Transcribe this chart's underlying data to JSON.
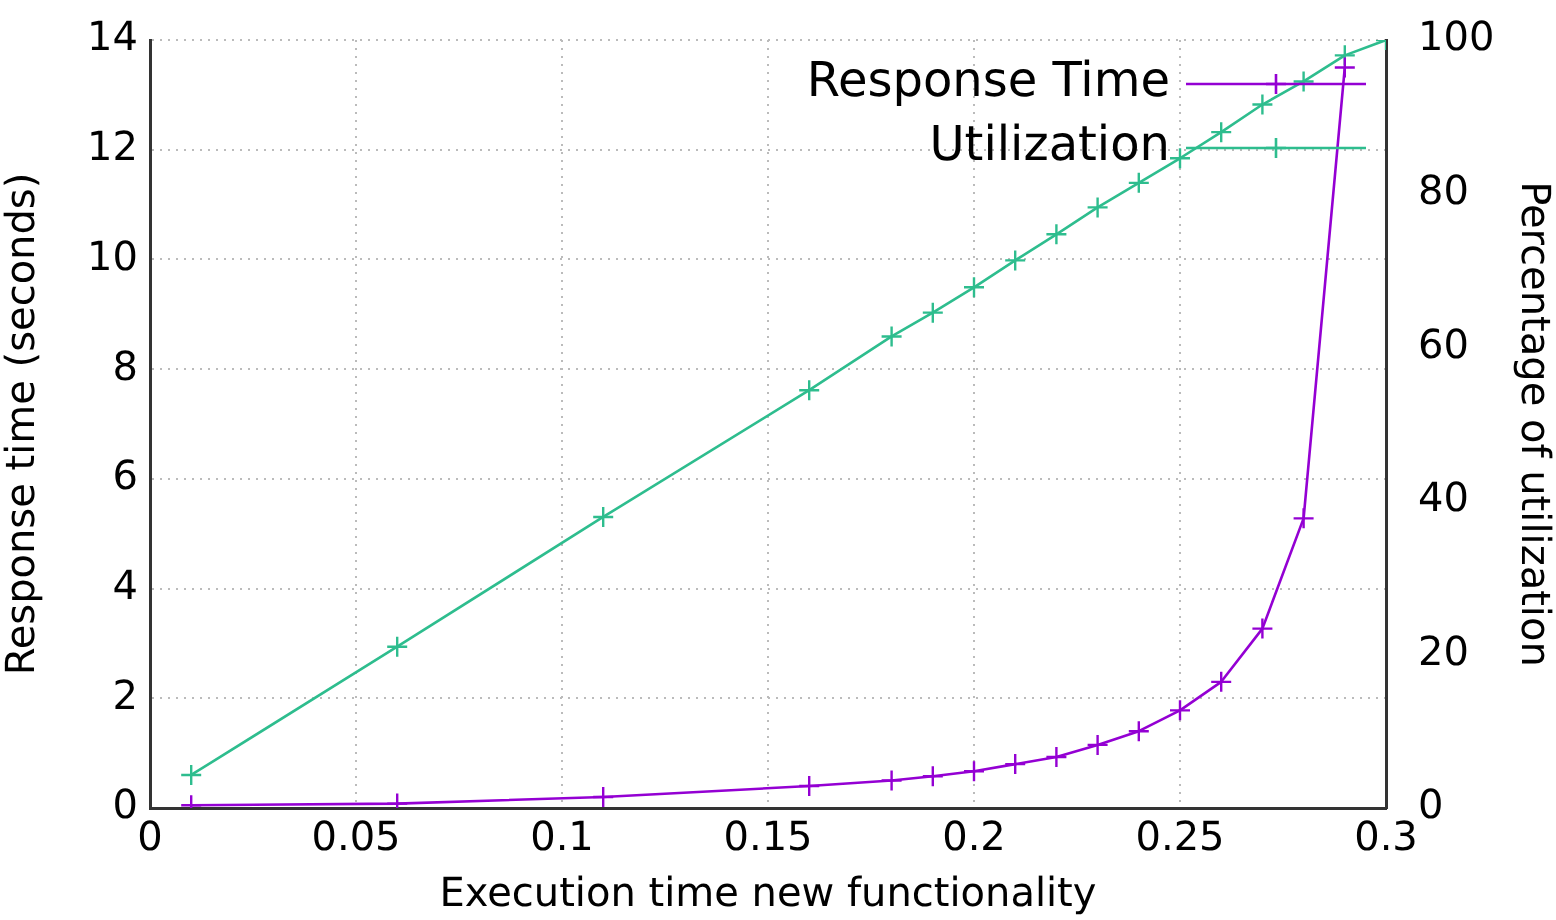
{
  "chart_data": {
    "type": "line",
    "xlabel": "Execution time new functionality",
    "ylabel": "Response time (seconds)",
    "y2label": "Percentage of utilization",
    "xlim": [
      0,
      0.3
    ],
    "xticks": [
      0,
      0.05,
      0.1,
      0.15,
      0.2,
      0.25,
      0.3
    ],
    "ylim": [
      0,
      14
    ],
    "yticks": [
      0,
      2,
      4,
      6,
      8,
      10,
      12,
      14
    ],
    "y2lim": [
      0,
      100
    ],
    "y2ticks": [
      0,
      20,
      40,
      60,
      80,
      100
    ],
    "grid": true,
    "legend": "top right",
    "line_style": "solid",
    "series": [
      {
        "name": "Response Time",
        "color": "#9400d3",
        "marker": "cross",
        "x": [
          0.01,
          0.06,
          0.11,
          0.16,
          0.18,
          0.19,
          0.2,
          0.21,
          0.22,
          0.23,
          0.24,
          0.25,
          0.26,
          0.27,
          0.28,
          0.29
        ],
        "values": [
          0.05,
          0.08,
          0.2,
          0.4,
          0.5,
          0.58,
          0.67,
          0.8,
          0.93,
          1.15,
          1.4,
          1.78,
          2.3,
          3.27,
          5.28,
          13.5
        ]
      },
      {
        "name": "Utilization",
        "color": "#2ebd8e",
        "marker": "cross",
        "axis": "y2",
        "x": [
          0.01,
          0.06,
          0.11,
          0.16,
          0.18,
          0.19,
          0.2,
          0.21,
          0.22,
          0.23,
          0.24,
          0.25,
          0.26,
          0.27,
          0.28,
          0.29,
          0.3
        ],
        "values": [
          4.3,
          21,
          37.9,
          54.4,
          61.4,
          64.5,
          67.8,
          71.3,
          74.7,
          78.2,
          81.4,
          84.6,
          88,
          91.6,
          94.6,
          98,
          100
        ]
      }
    ]
  }
}
